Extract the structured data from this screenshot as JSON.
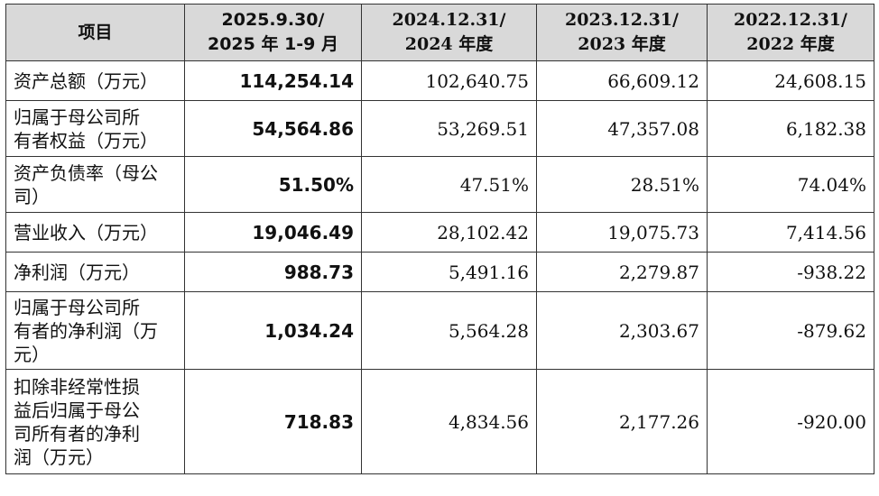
{
  "table": {
    "headers": [
      {
        "lines": [
          "项目"
        ]
      },
      {
        "lines": [
          "2025.9.30/",
          "2025 年 1-9 月"
        ]
      },
      {
        "lines": [
          "2024.12.31/",
          "2024 年度"
        ]
      },
      {
        "lines": [
          "2023.12.31/",
          "2023 年度"
        ]
      },
      {
        "lines": [
          "2022.12.31/",
          "2022 年度"
        ]
      }
    ],
    "rows": [
      {
        "label": "资产总额（万元）",
        "values": [
          "114,254.14",
          "102,640.75",
          "66,609.12",
          "24,608.15"
        ]
      },
      {
        "label": "归属于母公司所\n有者权益（万元）",
        "values": [
          "54,564.86",
          "53,269.51",
          "47,357.08",
          "6,182.38"
        ]
      },
      {
        "label": "资产负债率（母公\n司）",
        "values": [
          "51.50%",
          "47.51%",
          "28.51%",
          "74.04%"
        ]
      },
      {
        "label": "营业收入（万元）",
        "values": [
          "19,046.49",
          "28,102.42",
          "19,075.73",
          "7,414.56"
        ]
      },
      {
        "label": "净利润（万元）",
        "values": [
          "988.73",
          "5,491.16",
          "2,279.87",
          "-938.22"
        ]
      },
      {
        "label": "归属于母公司所\n有者的净利润（万\n元）",
        "values": [
          "1,034.24",
          "5,564.28",
          "2,303.67",
          "-879.62"
        ]
      },
      {
        "label": "扣除非经常性损\n益后归属于母公\n司所有者的净利\n润（万元）",
        "values": [
          "718.83",
          "4,834.56",
          "2,177.26",
          "-920.00"
        ]
      }
    ]
  }
}
